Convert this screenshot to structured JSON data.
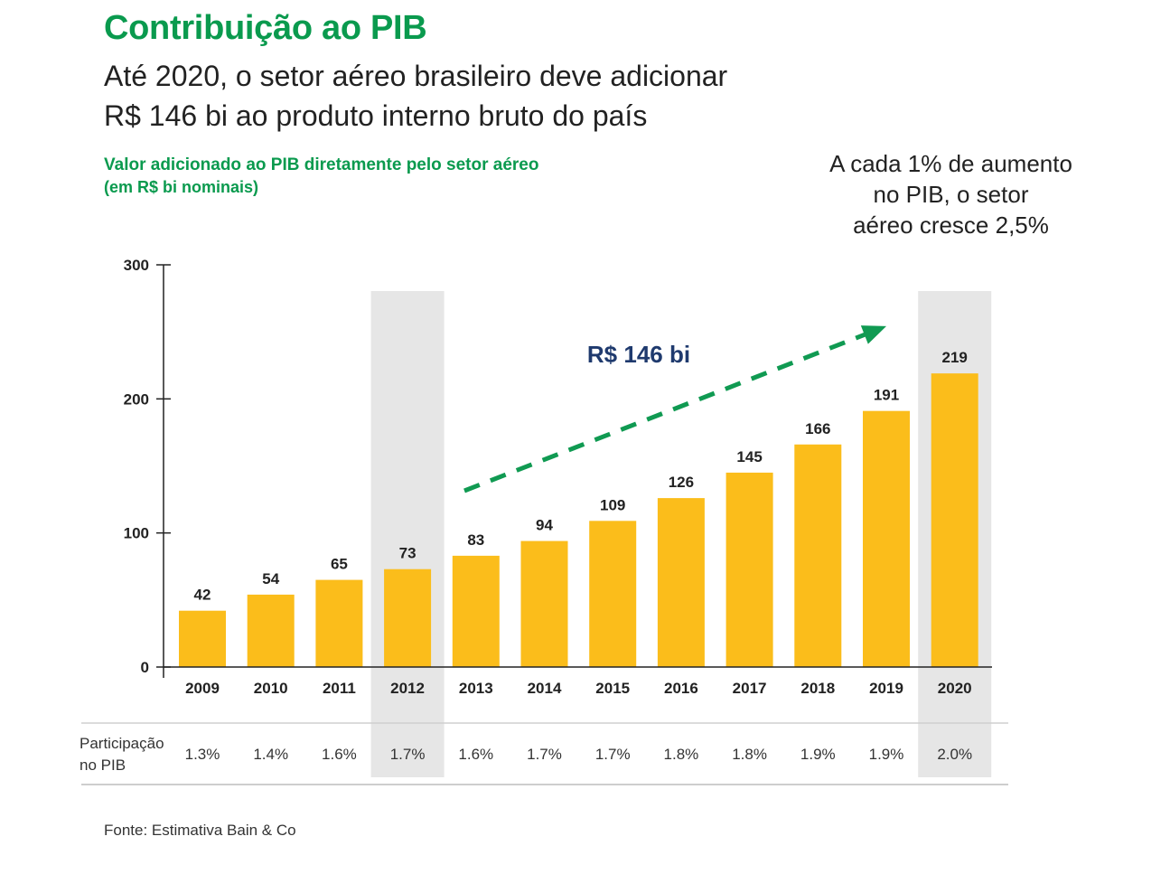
{
  "header": {
    "title": "Contribuição ao PIB",
    "subtitle_line1": "Até 2020, o setor aéreo brasileiro deve adicionar",
    "subtitle_line2": "R$ 146 bi ao produto interno bruto do país"
  },
  "side_note": {
    "line1": "A cada 1% de aumento",
    "line2": "no PIB, o setor",
    "line3": "aéreo cresce 2,5%"
  },
  "source": "Fonte: Estimativa Bain & Co",
  "colors": {
    "title": "#0a9a4e",
    "bar": "#fbbd1b",
    "highlight": "#e6e6e6",
    "arrow": "#109a52",
    "annotation": "#1f3a6e"
  },
  "chart_data": {
    "type": "bar",
    "title": "Valor adicionado ao PIB diretamente pelo setor aéreo",
    "subtitle": "(em R$ bi nominais)",
    "categories": [
      "2009",
      "2010",
      "2011",
      "2012",
      "2013",
      "2014",
      "2015",
      "2016",
      "2017",
      "2018",
      "2019",
      "2020"
    ],
    "values": [
      42,
      54,
      65,
      73,
      83,
      94,
      109,
      126,
      145,
      166,
      191,
      219
    ],
    "data_labels": [
      "42",
      "54",
      "65",
      "73",
      "83",
      "94",
      "109",
      "126",
      "145",
      "166",
      "191",
      "219"
    ],
    "ylim": [
      0,
      300
    ],
    "yticks": [
      0,
      100,
      200,
      300
    ],
    "ytick_labels": [
      "0",
      "100",
      "200",
      "300"
    ],
    "highlighted_categories": [
      "2012",
      "2020"
    ],
    "annotation": "R$ 146 bi",
    "share_row": {
      "label_line1": "Participação",
      "label_line2": "no PIB",
      "values": [
        "1.3%",
        "1.4%",
        "1.6%",
        "1.7%",
        "1.6%",
        "1.7%",
        "1.7%",
        "1.8%",
        "1.8%",
        "1.9%",
        "1.9%",
        "2.0%"
      ]
    },
    "grid": false
  }
}
